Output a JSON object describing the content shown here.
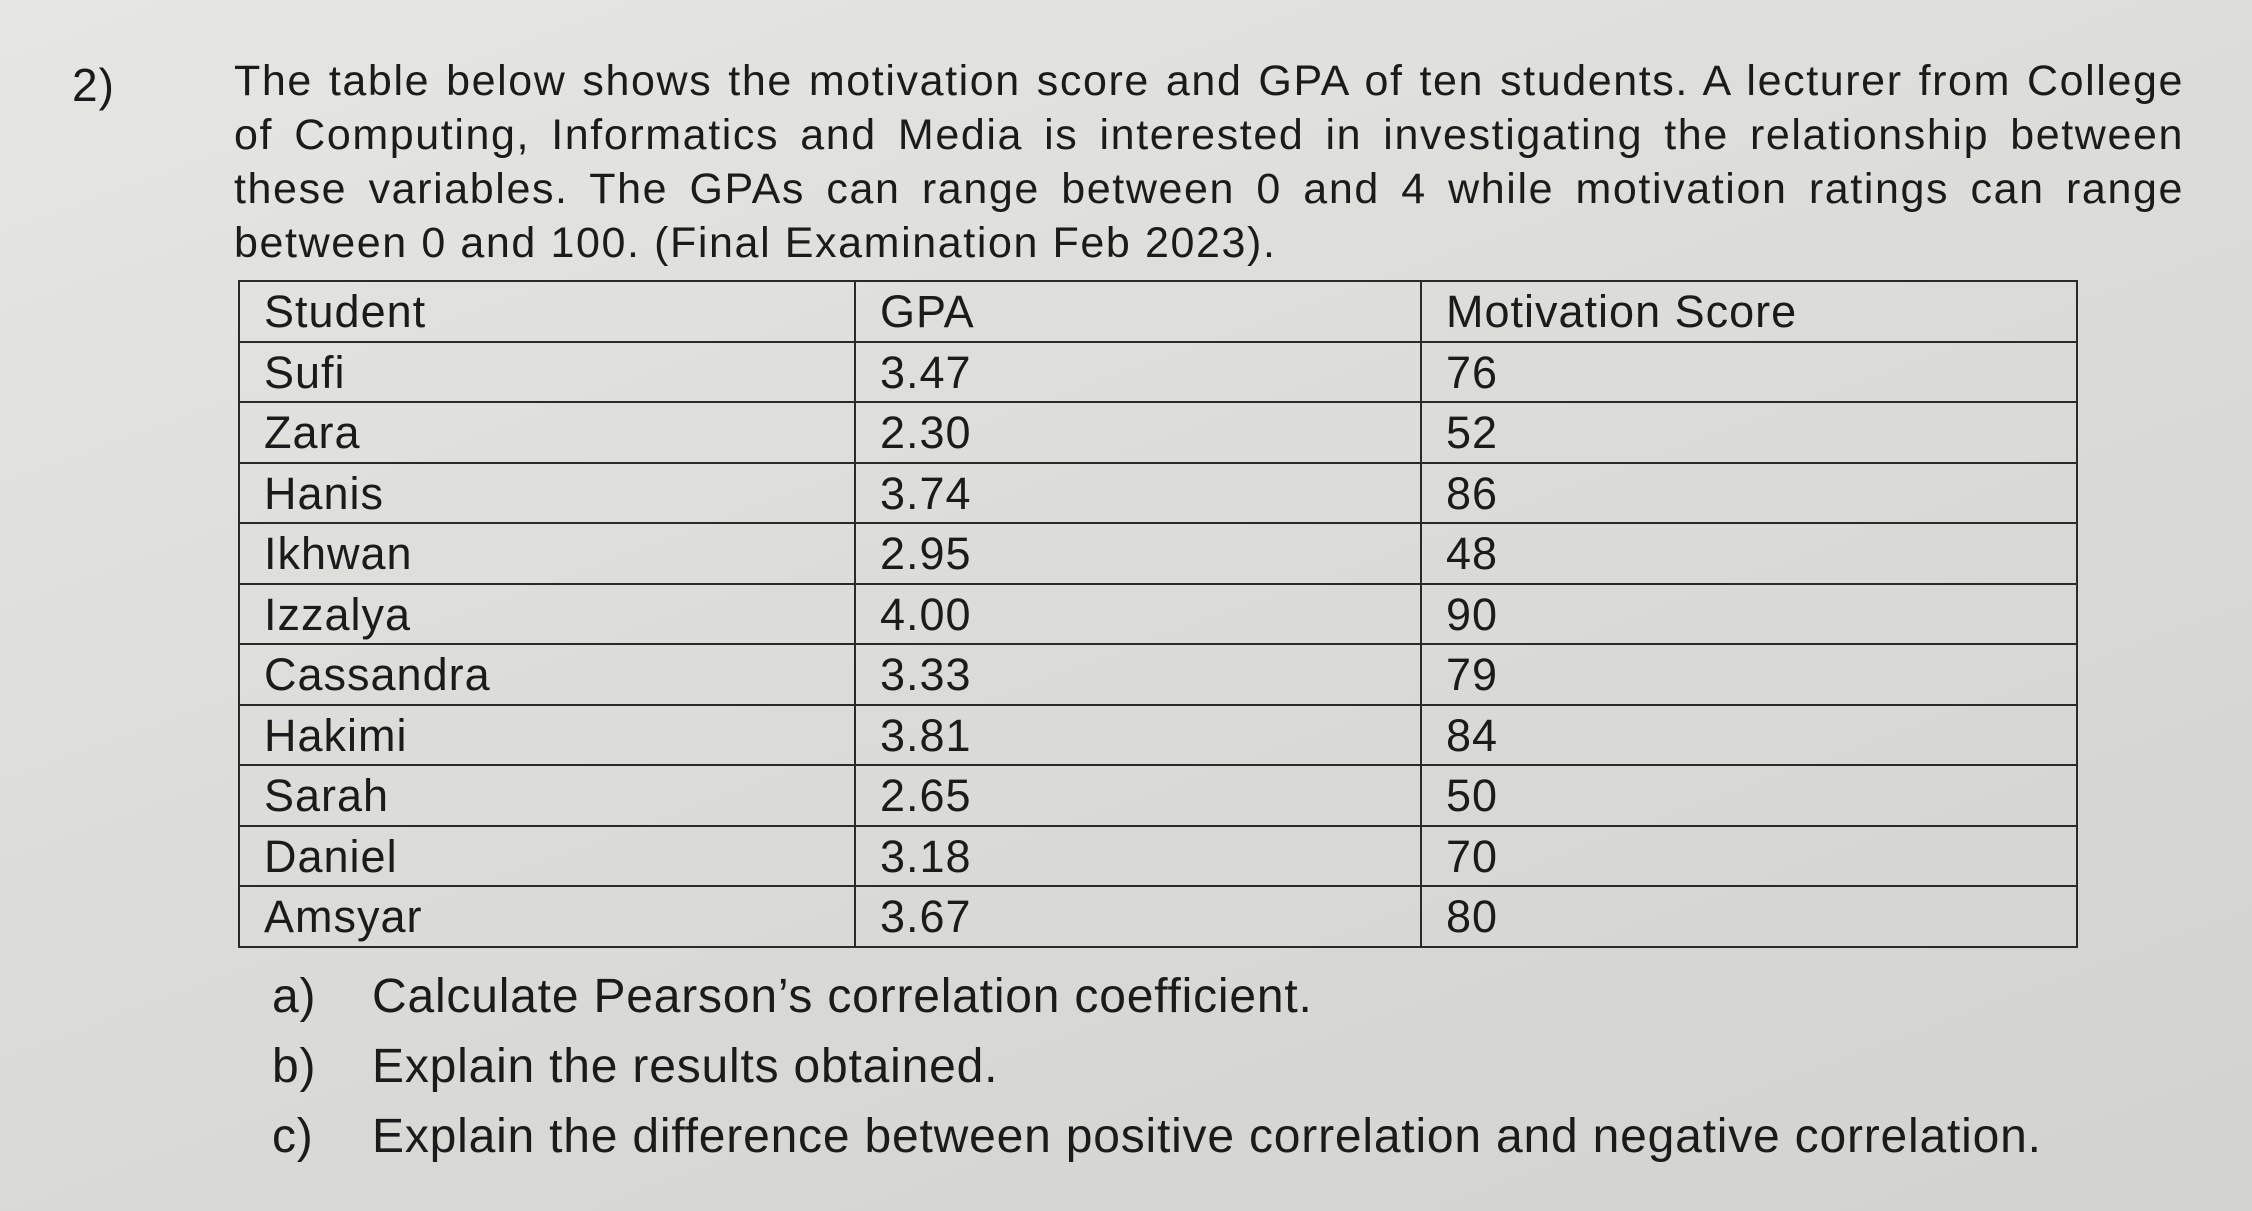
{
  "question": {
    "number": "2)",
    "intro": "The table below shows the motivation score and GPA of ten students. A lecturer from College of Computing, Informatics and Media is interested in investigating the relationship between these variables. The GPAs can range between 0 and 4 while motivation ratings can range between 0 and 100. (Final Examination Feb 2023)."
  },
  "table": {
    "headers": [
      "Student",
      "GPA",
      "Motivation Score"
    ],
    "rows": [
      [
        "Sufi",
        "3.47",
        "76"
      ],
      [
        "Zara",
        "2.30",
        "52"
      ],
      [
        "Hanis",
        "3.74",
        "86"
      ],
      [
        "Ikhwan",
        "2.95",
        "48"
      ],
      [
        "Izzalya",
        "4.00",
        "90"
      ],
      [
        "Cassandra",
        "3.33",
        "79"
      ],
      [
        "Hakimi",
        "3.81",
        "84"
      ],
      [
        "Sarah",
        "2.65",
        "50"
      ],
      [
        "Daniel",
        "3.18",
        "70"
      ],
      [
        "Amsyar",
        "3.67",
        "80"
      ]
    ]
  },
  "tasks": [
    {
      "marker": "a)",
      "text": "Calculate Pearson’s correlation coefficient."
    },
    {
      "marker": "b)",
      "text": "Explain the results obtained."
    },
    {
      "marker": "c)",
      "text": "Explain the difference between positive correlation and negative correlation."
    }
  ]
}
